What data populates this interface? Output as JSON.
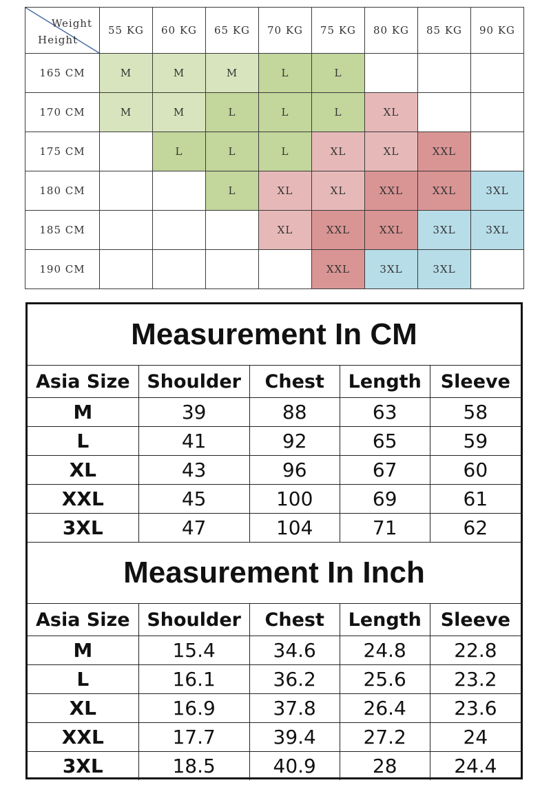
{
  "matrix": {
    "corner_weight": "Weight",
    "corner_height": "Height",
    "weights": [
      "55 KG",
      "60 KG",
      "65 KG",
      "70 KG",
      "75 KG",
      "80 KG",
      "85 KG",
      "90 KG"
    ],
    "rows": [
      {
        "height": "165 CM",
        "cells": [
          "M",
          "M",
          "M",
          "L",
          "L",
          "",
          "",
          ""
        ]
      },
      {
        "height": "170 CM",
        "cells": [
          "M",
          "M",
          "L",
          "L",
          "L",
          "XL",
          "",
          ""
        ]
      },
      {
        "height": "175 CM",
        "cells": [
          "",
          "L",
          "L",
          "L",
          "XL",
          "XL",
          "XXL",
          ""
        ]
      },
      {
        "height": "180 CM",
        "cells": [
          "",
          "",
          "L",
          "XL",
          "XL",
          "XXL",
          "XXL",
          "3XL"
        ]
      },
      {
        "height": "185 CM",
        "cells": [
          "",
          "",
          "",
          "XL",
          "XXL",
          "XXL",
          "3XL",
          "3XL"
        ]
      },
      {
        "height": "190 CM",
        "cells": [
          "",
          "",
          "",
          "",
          "XXL",
          "3XL",
          "3XL",
          ""
        ]
      }
    ],
    "colors": {
      "M": "#d8e4bd",
      "L": "#c3d69b",
      "XL": "#e6b9b8",
      "XXL": "#d99594",
      "3XL": "#b7dde8"
    }
  },
  "cm": {
    "title": "Measurement In CM",
    "headers": [
      "Asia Size",
      "Shoulder",
      "Chest",
      "Length",
      "Sleeve"
    ],
    "rows": [
      [
        "M",
        "39",
        "88",
        "63",
        "58"
      ],
      [
        "L",
        "41",
        "92",
        "65",
        "59"
      ],
      [
        "XL",
        "43",
        "96",
        "67",
        "60"
      ],
      [
        "XXL",
        "45",
        "100",
        "69",
        "61"
      ],
      [
        "3XL",
        "47",
        "104",
        "71",
        "62"
      ]
    ]
  },
  "inch": {
    "title": "Measurement In Inch",
    "headers": [
      "Asia Size",
      "Shoulder",
      "Chest",
      "Length",
      "Sleeve"
    ],
    "rows": [
      [
        "M",
        "15.4",
        "34.6",
        "24.8",
        "22.8"
      ],
      [
        "L",
        "16.1",
        "36.2",
        "25.6",
        "23.2"
      ],
      [
        "XL",
        "16.9",
        "37.8",
        "26.4",
        "23.6"
      ],
      [
        "XXL",
        "17.7",
        "39.4",
        "27.2",
        "24"
      ],
      [
        "3XL",
        "18.5",
        "40.9",
        "28",
        "24.4"
      ]
    ]
  }
}
